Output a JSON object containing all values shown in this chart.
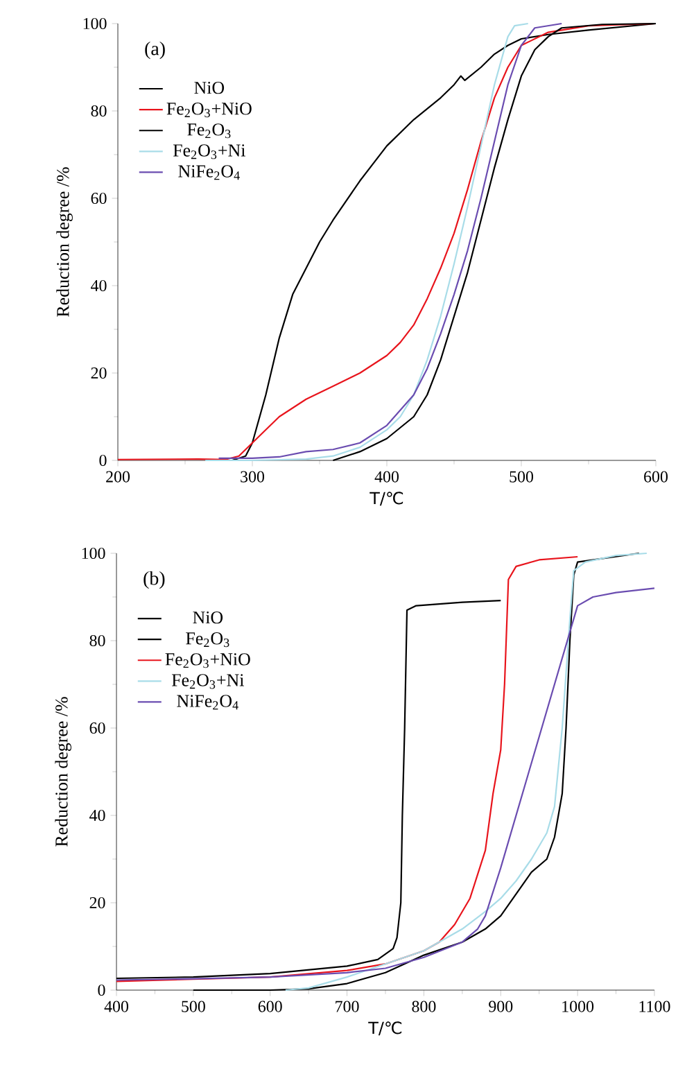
{
  "chart_data": [
    {
      "type": "line",
      "annotations": [
        "(a)"
      ],
      "xlabel": "T/℃",
      "ylabel": "Reduction degree /%",
      "xlim": [
        200,
        600
      ],
      "ylim": [
        0,
        100
      ],
      "xticks": [
        200,
        300,
        400,
        500,
        600
      ],
      "yticks": [
        0,
        20,
        40,
        60,
        80,
        100
      ],
      "legend": "top left",
      "series": [
        {
          "name": "NiO",
          "color": "#000000",
          "x": [
            285,
            295,
            300,
            310,
            320,
            330,
            340,
            350,
            360,
            380,
            400,
            420,
            440,
            450,
            455,
            458,
            470,
            480,
            490,
            500,
            520,
            550,
            600
          ],
          "values": [
            0,
            1,
            4,
            15,
            28,
            38,
            44,
            50,
            55,
            64,
            72,
            78,
            83,
            86,
            88,
            87,
            90,
            93,
            95,
            96.5,
            97.5,
            98.5,
            100
          ]
        },
        {
          "name": "Fe$_{2}$O$_{3}$+NiO",
          "color": "#e8141c",
          "x": [
            200,
            260,
            280,
            290,
            300,
            320,
            340,
            360,
            380,
            400,
            410,
            420,
            430,
            440,
            450,
            460,
            470,
            480,
            490,
            500,
            520,
            550,
            600
          ],
          "values": [
            0.2,
            0.3,
            0.2,
            1,
            4,
            10,
            14,
            17,
            20,
            24,
            27,
            31,
            37,
            44,
            52,
            62,
            73,
            83,
            90,
            95,
            98,
            99.5,
            100
          ]
        },
        {
          "name": "Fe$_{2}$O$_{3}$",
          "color": "#000000",
          "x": [
            360,
            380,
            400,
            420,
            430,
            440,
            450,
            460,
            470,
            480,
            490,
            500,
            510,
            520,
            530,
            560,
            600
          ],
          "values": [
            0,
            2,
            5,
            10,
            15,
            23,
            33,
            43,
            55,
            67,
            78,
            88,
            94,
            97,
            99,
            99.8,
            100
          ]
        },
        {
          "name": "Fe$_{2}$O$_{3}$+Ni",
          "color": "#a8dce8",
          "x": [
            265,
            300,
            340,
            360,
            380,
            400,
            410,
            420,
            430,
            440,
            450,
            460,
            470,
            480,
            490,
            495,
            505
          ],
          "values": [
            0,
            0,
            0.3,
            1,
            3,
            7,
            10,
            15,
            23,
            33,
            45,
            58,
            72,
            86,
            97,
            99.5,
            100
          ]
        },
        {
          "name": "NiFe$_{2}$O$_{4}$",
          "color": "#6a4cb0",
          "x": [
            275,
            300,
            320,
            340,
            360,
            380,
            400,
            420,
            430,
            440,
            450,
            460,
            470,
            480,
            490,
            500,
            510,
            530
          ],
          "values": [
            0.5,
            0.5,
            0.8,
            2,
            2.5,
            4,
            8,
            15,
            21,
            29,
            38,
            48,
            60,
            73,
            86,
            95,
            99,
            100
          ]
        }
      ]
    },
    {
      "type": "line",
      "annotations": [
        "(b)"
      ],
      "xlabel": "T/℃",
      "ylabel": "Reduction degree /%",
      "xlim": [
        400,
        1100
      ],
      "ylim": [
        0,
        100
      ],
      "xticks": [
        400,
        500,
        600,
        700,
        800,
        900,
        1000,
        1100
      ],
      "yticks": [
        0,
        20,
        40,
        60,
        80,
        100
      ],
      "legend": "top left",
      "series": [
        {
          "name": "NiO",
          "color": "#000000",
          "x": [
            400,
            500,
            600,
            700,
            740,
            760,
            765,
            770,
            772,
            775,
            778,
            790,
            850,
            900
          ],
          "values": [
            2.7,
            3,
            3.8,
            5.5,
            7,
            9.5,
            12,
            20,
            40,
            60,
            87,
            88,
            88.8,
            89.2
          ]
        },
        {
          "name": "Fe$_{2}$O$_{3}$",
          "color": "#000000",
          "x": [
            500,
            600,
            650,
            700,
            750,
            800,
            850,
            880,
            900,
            920,
            940,
            960,
            970,
            980,
            985,
            990,
            995,
            1000,
            1050,
            1080
          ],
          "values": [
            0,
            0,
            0.3,
            1.5,
            4,
            8,
            11,
            14,
            17,
            22,
            27,
            30,
            35,
            45,
            60,
            80,
            95,
            98,
            null,
            100
          ]
        },
        {
          "name": "Fe$_{2}$O$_{3}$+NiO",
          "color": "#e8141c",
          "x": [
            400,
            500,
            600,
            700,
            750,
            800,
            820,
            840,
            860,
            880,
            890,
            900,
            905,
            910,
            920,
            950,
            1000
          ],
          "values": [
            2,
            2.5,
            3,
            4.5,
            6,
            9,
            11,
            15,
            21,
            32,
            45,
            55,
            70,
            94,
            97,
            98.5,
            99.2
          ]
        },
        {
          "name": "Fe$_{2}$O$_{3}$+Ni",
          "color": "#a8dce8",
          "x": [
            620,
            650,
            700,
            750,
            800,
            850,
            880,
            900,
            920,
            940,
            960,
            970,
            980,
            990,
            995,
            1010,
            1050,
            1090
          ],
          "values": [
            0,
            0.5,
            3,
            6,
            9,
            14,
            18,
            21,
            25,
            30,
            36,
            42,
            60,
            85,
            96,
            98,
            99.5,
            100
          ]
        },
        {
          "name": "NiFe$_{2}$O$_{4}$",
          "color": "#6a4cb0",
          "x": [
            400,
            500,
            600,
            700,
            750,
            800,
            850,
            870,
            880,
            900,
            920,
            940,
            960,
            980,
            1000,
            1020,
            1050,
            1100
          ],
          "values": [
            2.3,
            2.6,
            3,
            4,
            5,
            7.5,
            11,
            14,
            17,
            28,
            40,
            52,
            64,
            76,
            88,
            90,
            91,
            92
          ]
        }
      ]
    }
  ]
}
